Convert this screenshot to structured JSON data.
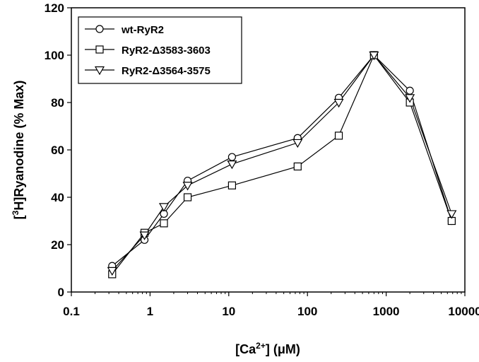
{
  "chart_data": {
    "type": "line",
    "xscale": "log",
    "xlim": [
      0.1,
      10000
    ],
    "ylim": [
      0,
      120
    ],
    "x_ticks": [
      "0.1",
      "1",
      "10",
      "100",
      "1000",
      "10000"
    ],
    "y_ticks": [
      "0",
      "20",
      "40",
      "60",
      "80",
      "100",
      "120"
    ],
    "xlabel": {
      "pre": "[Ca",
      "sup": "2+",
      "post": "] (μM)"
    },
    "ylabel": {
      "pre": "[",
      "sup": "3",
      "post": "H]Ryanodine (% Max)"
    },
    "legend_position": "top-left",
    "series": [
      {
        "name": "wt-RyR2",
        "marker": "circle",
        "x": [
          0.33,
          0.85,
          1.5,
          3.0,
          11,
          75,
          250,
          700,
          2000,
          6800
        ],
        "y": [
          11,
          22,
          33,
          47,
          57,
          65,
          82,
          100,
          85,
          30
        ]
      },
      {
        "name": "RyR2-Δ3583-3603",
        "marker": "square",
        "x": [
          0.33,
          0.85,
          1.5,
          3.0,
          11,
          75,
          250,
          700,
          2000,
          6800
        ],
        "y": [
          7.5,
          25,
          29,
          40,
          45,
          53,
          66,
          100,
          80,
          30
        ]
      },
      {
        "name": "RyR2-Δ3564-3575",
        "marker": "triangle-down",
        "x": [
          0.33,
          0.85,
          1.5,
          3.0,
          11,
          75,
          250,
          700,
          2000,
          6800
        ],
        "y": [
          9,
          24,
          36,
          45,
          54,
          63,
          80,
          100,
          82,
          33
        ]
      }
    ]
  }
}
